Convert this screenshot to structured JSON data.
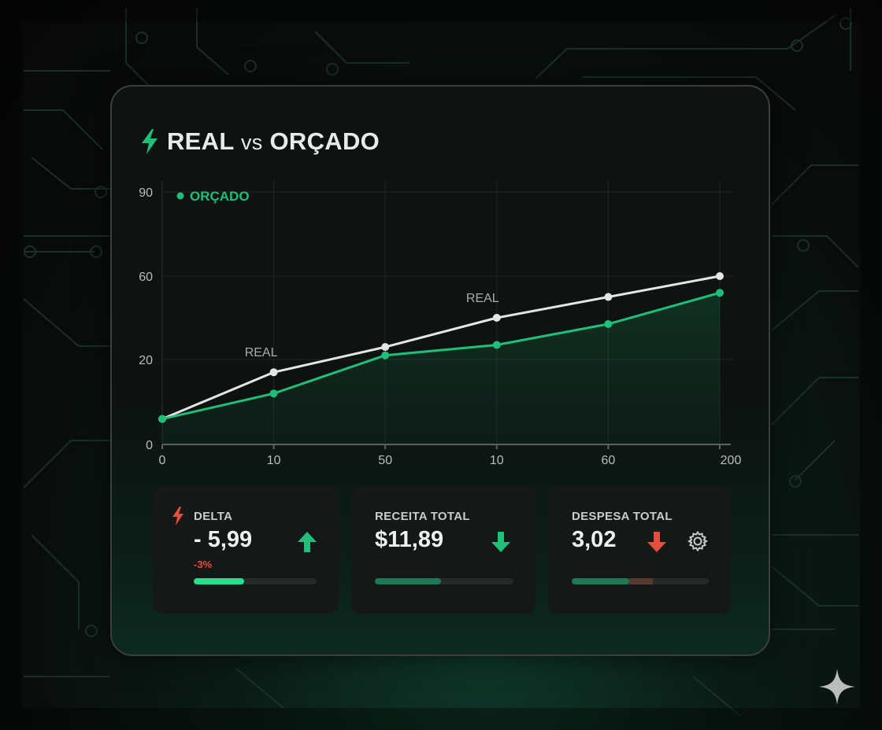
{
  "title": {
    "prefix": "REAL",
    "vs": "vs",
    "suffix": "ORÇADO"
  },
  "colors": {
    "accent": "#1fbf7a",
    "real_line": "#e4e6e5",
    "down_red": "#e0503d"
  },
  "chart_data": {
    "type": "line",
    "categories": [
      "0",
      "10",
      "50",
      "10",
      "60",
      "200"
    ],
    "y_ticks": [
      "0",
      "20",
      "60",
      "90"
    ],
    "series": [
      {
        "name": "REAL",
        "values": [
          6,
          17,
          26,
          40,
          50,
          60
        ]
      },
      {
        "name": "ORÇADO",
        "values": [
          6,
          12,
          22,
          27,
          37,
          52
        ]
      }
    ],
    "legend": {
      "label": "ORÇADO",
      "placement": "top-left"
    },
    "annotations": [
      "REAL",
      "REAL"
    ],
    "grid": true
  },
  "stats": [
    {
      "label": "DELTA",
      "value": "- 5,99",
      "sub": "-3%",
      "trend": "up",
      "bar_fraction": 0.41,
      "icon": "bolt-icon"
    },
    {
      "label": "RECEITA TOTAL",
      "value": "$11,89",
      "trend": "down",
      "bar_fraction": 0.48
    },
    {
      "label": "DESPESA TOTAL",
      "value": "3,02",
      "trend": "down",
      "bar_fraction": 0.42,
      "bar_secondary_fraction": 0.17,
      "icon": "gear-icon"
    }
  ]
}
